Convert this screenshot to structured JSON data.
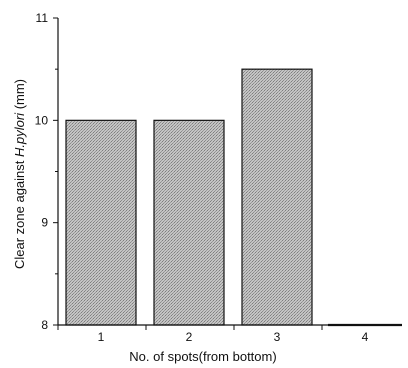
{
  "chart_data": {
    "type": "bar",
    "categories": [
      "1",
      "2",
      "3",
      "4"
    ],
    "values": [
      10.0,
      10.0,
      10.5,
      8.0
    ],
    "ylim": [
      8,
      11
    ],
    "yticks": [
      "8",
      "9",
      "10",
      "11"
    ],
    "xlabel": "No. of spots(from bottom)",
    "ylabel_prefix": "Clear zone against ",
    "ylabel_italic": "H.pylori",
    "ylabel_suffix": " (mm)",
    "grid": false,
    "legend": "none"
  },
  "colors": {
    "bar_fill": "#bdbdbd",
    "bar_texture": "#8a8a8a",
    "bar_edge": "#111111",
    "axis": "#111111"
  }
}
